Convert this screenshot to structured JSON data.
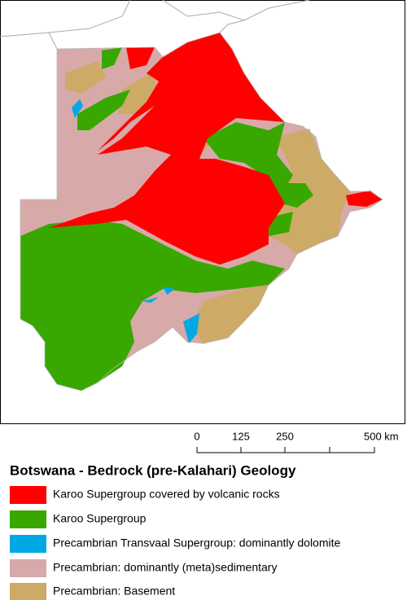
{
  "title": "Botswana - Bedrock (pre-Kalahari) Geology",
  "scale_bar": {
    "labels": [
      "0",
      "125",
      "250",
      "500 km"
    ]
  },
  "legend": [
    {
      "label": "Karoo Supergroup covered by volcanic rocks",
      "color": "#ff0000"
    },
    {
      "label": "Karoo Supergroup",
      "color": "#38a800"
    },
    {
      "label": "Precambrian Transvaal Supergroup: dominantly dolomite",
      "color": "#00a9e6"
    },
    {
      "label": "Precambrian: dominantly (meta)sedimentary",
      "color": "#d7a9a9"
    },
    {
      "label": "Precambrian: Basement",
      "color": "#cdaa66"
    }
  ]
}
